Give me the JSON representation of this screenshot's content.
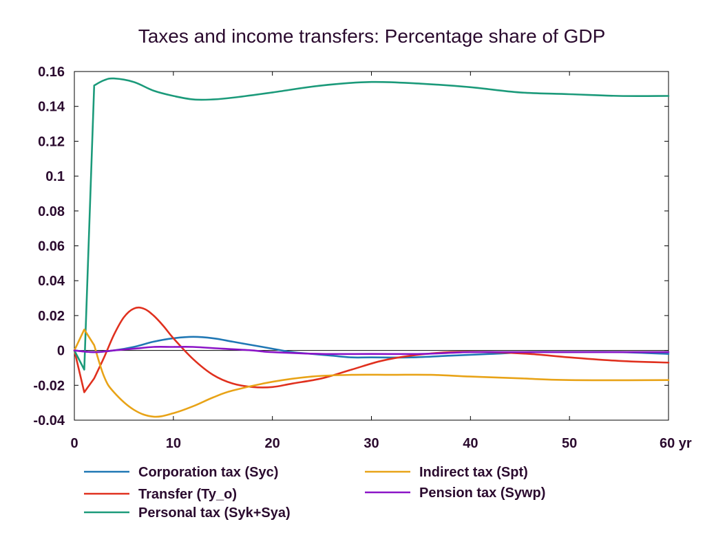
{
  "chart_data": {
    "type": "line",
    "title": "Taxes and income transfers: Percentage share of GDP",
    "x_unit_label": "yr",
    "xlim": [
      0,
      60
    ],
    "ylim": [
      -0.04,
      0.16
    ],
    "x_ticks": [
      0,
      10,
      20,
      30,
      40,
      50,
      60
    ],
    "x_tick_labels": [
      "0",
      "10",
      "20",
      "30",
      "40",
      "50",
      "60 yr"
    ],
    "y_ticks": [
      -0.04,
      -0.02,
      0,
      0.02,
      0.04,
      0.06,
      0.08,
      0.1,
      0.12,
      0.14,
      0.16
    ],
    "y_tick_labels": [
      "-0.04",
      "-0.02",
      "0",
      "0.02",
      "0.04",
      "0.06",
      "0.08",
      "0.1",
      "0.12",
      "0.14",
      "0.16"
    ],
    "grid": false,
    "legend_position": "bottom",
    "series": [
      {
        "name": "Corporation tax (Syc)",
        "color": "#1f77b4",
        "points": [
          [
            0,
            0
          ],
          [
            2,
            -0.001
          ],
          [
            4,
            0
          ],
          [
            6,
            0.002
          ],
          [
            8,
            0.005
          ],
          [
            10,
            0.007
          ],
          [
            12,
            0.0078
          ],
          [
            14,
            0.007
          ],
          [
            16,
            0.005
          ],
          [
            18,
            0.003
          ],
          [
            20,
            0.001
          ],
          [
            22,
            -0.001
          ],
          [
            24,
            -0.002
          ],
          [
            26,
            -0.003
          ],
          [
            28,
            -0.004
          ],
          [
            30,
            -0.004
          ],
          [
            34,
            -0.004
          ],
          [
            38,
            -0.003
          ],
          [
            42,
            -0.002
          ],
          [
            46,
            -0.001
          ],
          [
            50,
            -0.001
          ],
          [
            55,
            -0.001
          ],
          [
            60,
            -0.002
          ]
        ]
      },
      {
        "name": "Transfer (Ty_o)",
        "color": "#e0301e",
        "points": [
          [
            0,
            0
          ],
          [
            1,
            -0.024
          ],
          [
            2,
            -0.016
          ],
          [
            3,
            -0.004
          ],
          [
            4,
            0.009
          ],
          [
            5,
            0.019
          ],
          [
            6,
            0.024
          ],
          [
            7,
            0.024
          ],
          [
            8,
            0.02
          ],
          [
            9,
            0.014
          ],
          [
            10,
            0.007
          ],
          [
            12,
            -0.005
          ],
          [
            14,
            -0.014
          ],
          [
            16,
            -0.019
          ],
          [
            18,
            -0.021
          ],
          [
            20,
            -0.021
          ],
          [
            22,
            -0.019
          ],
          [
            25,
            -0.016
          ],
          [
            28,
            -0.011
          ],
          [
            31,
            -0.006
          ],
          [
            34,
            -0.003
          ],
          [
            38,
            -0.001
          ],
          [
            42,
            -0.001
          ],
          [
            46,
            -0.002
          ],
          [
            50,
            -0.004
          ],
          [
            55,
            -0.006
          ],
          [
            60,
            -0.007
          ]
        ]
      },
      {
        "name": "Personal tax (Syk+Sya)",
        "color": "#1b9a7a",
        "points": [
          [
            0,
            0
          ],
          [
            1,
            -0.011
          ],
          [
            2,
            0.152
          ],
          [
            3,
            0.155
          ],
          [
            4,
            0.156
          ],
          [
            6,
            0.154
          ],
          [
            8,
            0.149
          ],
          [
            10,
            0.146
          ],
          [
            12,
            0.144
          ],
          [
            14,
            0.144
          ],
          [
            16,
            0.145
          ],
          [
            20,
            0.148
          ],
          [
            25,
            0.152
          ],
          [
            30,
            0.154
          ],
          [
            35,
            0.153
          ],
          [
            40,
            0.151
          ],
          [
            45,
            0.148
          ],
          [
            50,
            0.147
          ],
          [
            55,
            0.146
          ],
          [
            60,
            0.146
          ]
        ]
      },
      {
        "name": "Indirect tax (Spt)",
        "color": "#e8a317",
        "points": [
          [
            0,
            0
          ],
          [
            1,
            0.012
          ],
          [
            2,
            0.003
          ],
          [
            3,
            -0.015
          ],
          [
            4,
            -0.024
          ],
          [
            6,
            -0.034
          ],
          [
            8,
            -0.038
          ],
          [
            10,
            -0.036
          ],
          [
            12,
            -0.032
          ],
          [
            14,
            -0.027
          ],
          [
            16,
            -0.023
          ],
          [
            20,
            -0.018
          ],
          [
            24,
            -0.015
          ],
          [
            28,
            -0.014
          ],
          [
            32,
            -0.014
          ],
          [
            36,
            -0.014
          ],
          [
            40,
            -0.015
          ],
          [
            45,
            -0.016
          ],
          [
            50,
            -0.017
          ],
          [
            60,
            -0.017
          ]
        ]
      },
      {
        "name": "Pension tax (Sywp)",
        "color": "#8b14c7",
        "points": [
          [
            0,
            0
          ],
          [
            2,
            -0.001
          ],
          [
            4,
            0
          ],
          [
            6,
            0.001
          ],
          [
            8,
            0.002
          ],
          [
            10,
            0.002
          ],
          [
            12,
            0.002
          ],
          [
            15,
            0.001
          ],
          [
            18,
            0
          ],
          [
            20,
            -0.001
          ],
          [
            25,
            -0.002
          ],
          [
            30,
            -0.002
          ],
          [
            35,
            -0.002
          ],
          [
            40,
            -0.001
          ],
          [
            45,
            -0.001
          ],
          [
            50,
            -0.001
          ],
          [
            60,
            -0.001
          ]
        ]
      }
    ]
  }
}
